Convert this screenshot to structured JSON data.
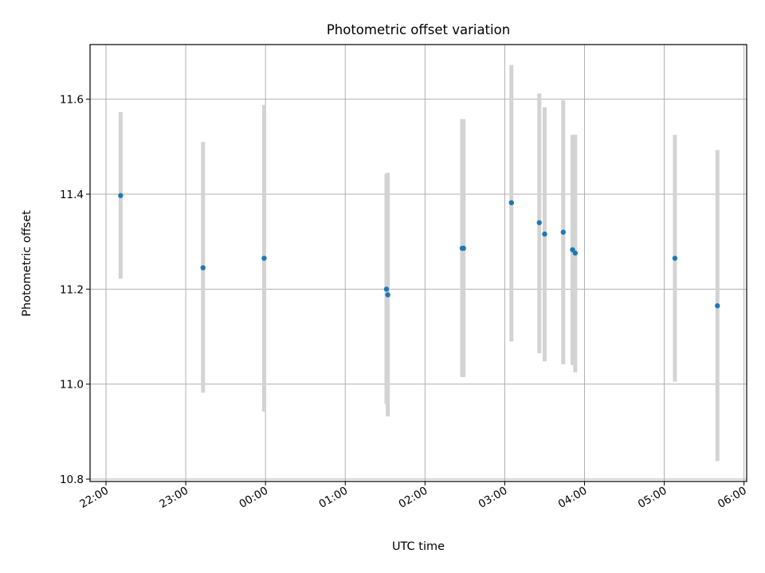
{
  "chart_data": {
    "type": "scatter",
    "title": "Photometric offset variation",
    "xlabel": "UTC time",
    "ylabel": "Photometric offset",
    "x_ticks": [
      "22:00",
      "23:00",
      "00:00",
      "01:00",
      "02:00",
      "03:00",
      "04:00",
      "05:00",
      "06:00"
    ],
    "y_ticks": [
      "10.8",
      "11.0",
      "11.2",
      "11.4",
      "11.6"
    ],
    "xlim": [
      "21:48",
      "06:02"
    ],
    "ylim": [
      10.795,
      11.715
    ],
    "grid": true,
    "colors": {
      "points": "#1f77b4",
      "errorbars": "#d3d3d3",
      "grid": "#b0b0b0"
    },
    "points": [
      {
        "time": "22:11",
        "offset": 11.397,
        "low": 11.222,
        "high": 11.573
      },
      {
        "time": "23:13",
        "offset": 11.245,
        "low": 10.982,
        "high": 11.51
      },
      {
        "time": "23:59",
        "offset": 11.265,
        "low": 10.942,
        "high": 11.588
      },
      {
        "time": "01:31",
        "offset": 11.2,
        "low": 10.958,
        "high": 11.443
      },
      {
        "time": "01:32",
        "offset": 11.188,
        "low": 10.932,
        "high": 11.445
      },
      {
        "time": "02:28",
        "offset": 11.286,
        "low": 11.015,
        "high": 11.558
      },
      {
        "time": "02:29",
        "offset": 11.286,
        "low": 11.015,
        "high": 11.558
      },
      {
        "time": "03:05",
        "offset": 11.382,
        "low": 11.09,
        "high": 11.672
      },
      {
        "time": "03:26",
        "offset": 11.34,
        "low": 11.065,
        "high": 11.612
      },
      {
        "time": "03:30",
        "offset": 11.316,
        "low": 11.048,
        "high": 11.583
      },
      {
        "time": "03:44",
        "offset": 11.32,
        "low": 11.042,
        "high": 11.598
      },
      {
        "time": "03:51",
        "offset": 11.283,
        "low": 11.04,
        "high": 11.525
      },
      {
        "time": "03:53",
        "offset": 11.276,
        "low": 11.025,
        "high": 11.525
      },
      {
        "time": "05:08",
        "offset": 11.265,
        "low": 11.005,
        "high": 11.525
      },
      {
        "time": "05:40",
        "offset": 11.165,
        "low": 10.838,
        "high": 11.493
      }
    ]
  }
}
